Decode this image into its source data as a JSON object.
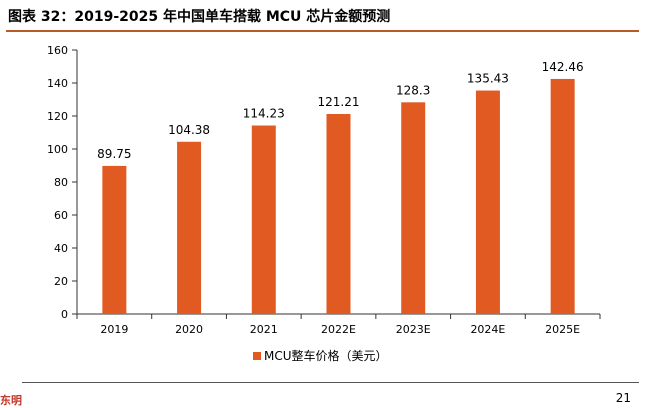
{
  "title": "图表 32：2019-2025 年中国单车搭载 MCU 芯片金额预测",
  "chart_data": {
    "type": "bar",
    "categories": [
      "2019",
      "2020",
      "2021",
      "2022E",
      "2023E",
      "2024E",
      "2025E"
    ],
    "series": [
      {
        "name": "MCU整车价格（美元）",
        "values": [
          89.75,
          104.38,
          114.23,
          121.21,
          128.3,
          135.43,
          142.46
        ],
        "labels": [
          "89.75",
          "104.38",
          "114.23",
          "121.21",
          "128.3",
          "135.43",
          "142.46"
        ]
      }
    ],
    "yticks": [
      0,
      20,
      40,
      60,
      80,
      100,
      120,
      140,
      160
    ],
    "ylim": [
      0,
      160
    ],
    "grid": false,
    "legend": "bottom",
    "bar_color": "#e15a22"
  },
  "footer": {
    "left_text": "东明",
    "page_number": "21"
  }
}
